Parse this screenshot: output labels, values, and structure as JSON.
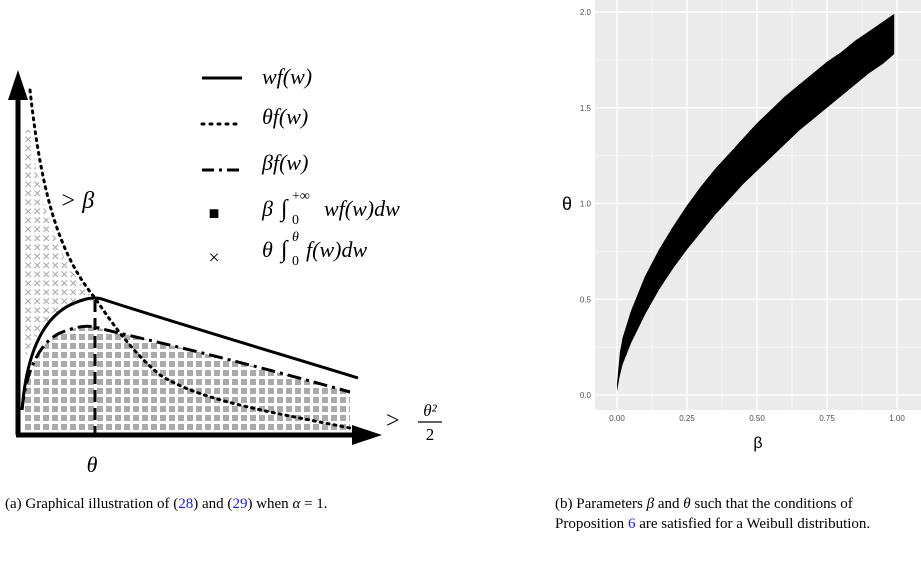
{
  "panel_a": {
    "legend": {
      "wf": "wf(w)",
      "thetaf": "θf(w)",
      "betaf": "βf(w)",
      "beta_int_prefix": "β",
      "beta_int_integrand": "wf(w)dw",
      "theta_int_prefix": "θ",
      "theta_int_integrand": "f(w)dw",
      "int_lower": "0",
      "beta_int_upper": "+∞",
      "theta_int_upper": "θ"
    },
    "label_gt_beta": "> β",
    "label_gt": ">",
    "label_frac_num": "θ²",
    "label_frac_den": "2",
    "label_theta_axis": "θ",
    "marker_square": "■",
    "marker_cross": "×"
  },
  "chart_data": {
    "type": "scatter",
    "title": "",
    "xlabel": "β",
    "ylabel": "θ",
    "xlim": [
      0,
      1.0
    ],
    "ylim": [
      0,
      2.0
    ],
    "xticks": [
      "0.00",
      "0.25",
      "0.50",
      "0.75",
      "1.00"
    ],
    "yticks": [
      "0.0",
      "0.5",
      "1.0",
      "1.5",
      "2.0"
    ],
    "region_lower": [
      [
        0.0,
        0.02
      ],
      [
        0.01,
        0.1
      ],
      [
        0.02,
        0.16
      ],
      [
        0.05,
        0.27
      ],
      [
        0.1,
        0.42
      ],
      [
        0.15,
        0.55
      ],
      [
        0.2,
        0.66
      ],
      [
        0.25,
        0.76
      ],
      [
        0.3,
        0.85
      ],
      [
        0.35,
        0.94
      ],
      [
        0.4,
        1.02
      ],
      [
        0.45,
        1.1
      ],
      [
        0.5,
        1.17
      ],
      [
        0.55,
        1.24
      ],
      [
        0.6,
        1.31
      ],
      [
        0.65,
        1.38
      ],
      [
        0.7,
        1.44
      ],
      [
        0.75,
        1.5
      ],
      [
        0.8,
        1.56
      ],
      [
        0.85,
        1.62
      ],
      [
        0.9,
        1.68
      ],
      [
        0.95,
        1.73
      ],
      [
        0.99,
        1.78
      ]
    ],
    "region_upper": [
      [
        0.0,
        0.06
      ],
      [
        0.01,
        0.22
      ],
      [
        0.02,
        0.3
      ],
      [
        0.05,
        0.44
      ],
      [
        0.1,
        0.62
      ],
      [
        0.15,
        0.76
      ],
      [
        0.2,
        0.88
      ],
      [
        0.25,
        0.99
      ],
      [
        0.3,
        1.09
      ],
      [
        0.35,
        1.18
      ],
      [
        0.4,
        1.26
      ],
      [
        0.45,
        1.34
      ],
      [
        0.5,
        1.42
      ],
      [
        0.55,
        1.49
      ],
      [
        0.6,
        1.56
      ],
      [
        0.65,
        1.62
      ],
      [
        0.7,
        1.68
      ],
      [
        0.75,
        1.74
      ],
      [
        0.8,
        1.79
      ],
      [
        0.85,
        1.85
      ],
      [
        0.9,
        1.9
      ],
      [
        0.95,
        1.95
      ],
      [
        0.99,
        1.99
      ]
    ],
    "grid": true,
    "colors": {
      "background": "#ebebeb",
      "grid": "#ffffff",
      "region": "#000000"
    }
  },
  "captions": {
    "a_prefix": "(a) Graphical illustration of (",
    "a_ref1": "28",
    "a_mid": ") and (",
    "a_ref2": "29",
    "a_suffix": ") when ",
    "a_alpha": "α",
    "a_eq": " = 1.",
    "b_prefix": "(b) Parameters ",
    "b_beta": "β",
    "b_and": " and ",
    "b_theta": "θ",
    "b_mid": " such that the conditions of Proposition ",
    "b_ref": "6",
    "b_suffix": " are satisfied for a Weibull distribution."
  }
}
